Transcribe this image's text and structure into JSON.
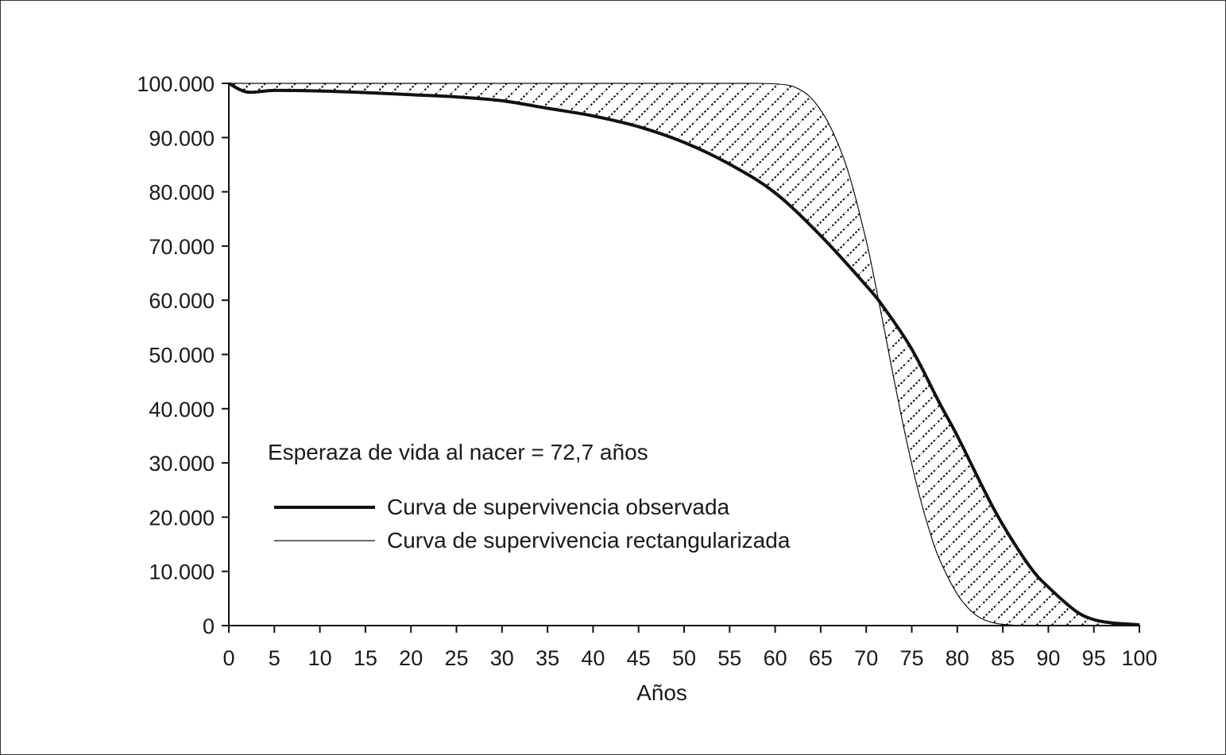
{
  "chart_data": {
    "type": "line",
    "title": "",
    "xlabel": "Años",
    "ylabel": "",
    "xlim": [
      0,
      100
    ],
    "ylim": [
      0,
      100000
    ],
    "x_ticks": [
      0,
      5,
      10,
      15,
      20,
      25,
      30,
      35,
      40,
      45,
      50,
      55,
      60,
      65,
      70,
      75,
      80,
      85,
      90,
      95,
      100
    ],
    "x_tick_labels": [
      "0",
      "5",
      "10",
      "15",
      "20",
      "25",
      "30",
      "35",
      "40",
      "45",
      "50",
      "55",
      "60",
      "65",
      "70",
      "75",
      "80",
      "85",
      "90",
      "95",
      "100"
    ],
    "y_ticks": [
      0,
      10000,
      20000,
      30000,
      40000,
      50000,
      60000,
      70000,
      80000,
      90000,
      100000
    ],
    "y_tick_labels": [
      "0",
      "10.000",
      "20.000",
      "30.000",
      "40.000",
      "50.000",
      "60.000",
      "70.000",
      "80.000",
      "90.000",
      "100.000"
    ],
    "grid": false,
    "legend_position": "center-left",
    "annotation": "Esperaza de vida al nacer = 72,7 años",
    "hatched_area_between_series": true,
    "series": [
      {
        "name": "Curva de supervivencia observada",
        "style": "thick",
        "x": [
          0,
          2,
          5,
          10,
          15,
          20,
          25,
          30,
          35,
          40,
          45,
          50,
          55,
          60,
          65,
          70,
          72,
          75,
          78,
          80,
          83,
          85,
          88,
          90,
          93,
          95,
          97,
          100
        ],
        "y": [
          100000,
          98400,
          98700,
          98600,
          98300,
          97900,
          97500,
          96800,
          95400,
          94000,
          92000,
          89100,
          85100,
          79800,
          71900,
          62700,
          58500,
          51000,
          41200,
          35000,
          24800,
          18600,
          10800,
          7100,
          2700,
          1100,
          500,
          150
        ]
      },
      {
        "name": "Curva de supervivencia rectangularizada",
        "style": "thin",
        "x": [
          0,
          10,
          20,
          30,
          40,
          50,
          55,
          58,
          60,
          62,
          64,
          66,
          68,
          70,
          71,
          72,
          73,
          74,
          75,
          76,
          77,
          78,
          80,
          82,
          84,
          86,
          88,
          90,
          95,
          100
        ],
        "y": [
          100000,
          100000,
          100000,
          100000,
          100000,
          100000,
          100000,
          100000,
          99900,
          99400,
          97200,
          92200,
          83800,
          71000,
          63000,
          54500,
          45800,
          37500,
          29800,
          23000,
          17200,
          12400,
          5800,
          2000,
          500,
          100,
          0,
          0,
          0,
          0
        ]
      }
    ]
  }
}
